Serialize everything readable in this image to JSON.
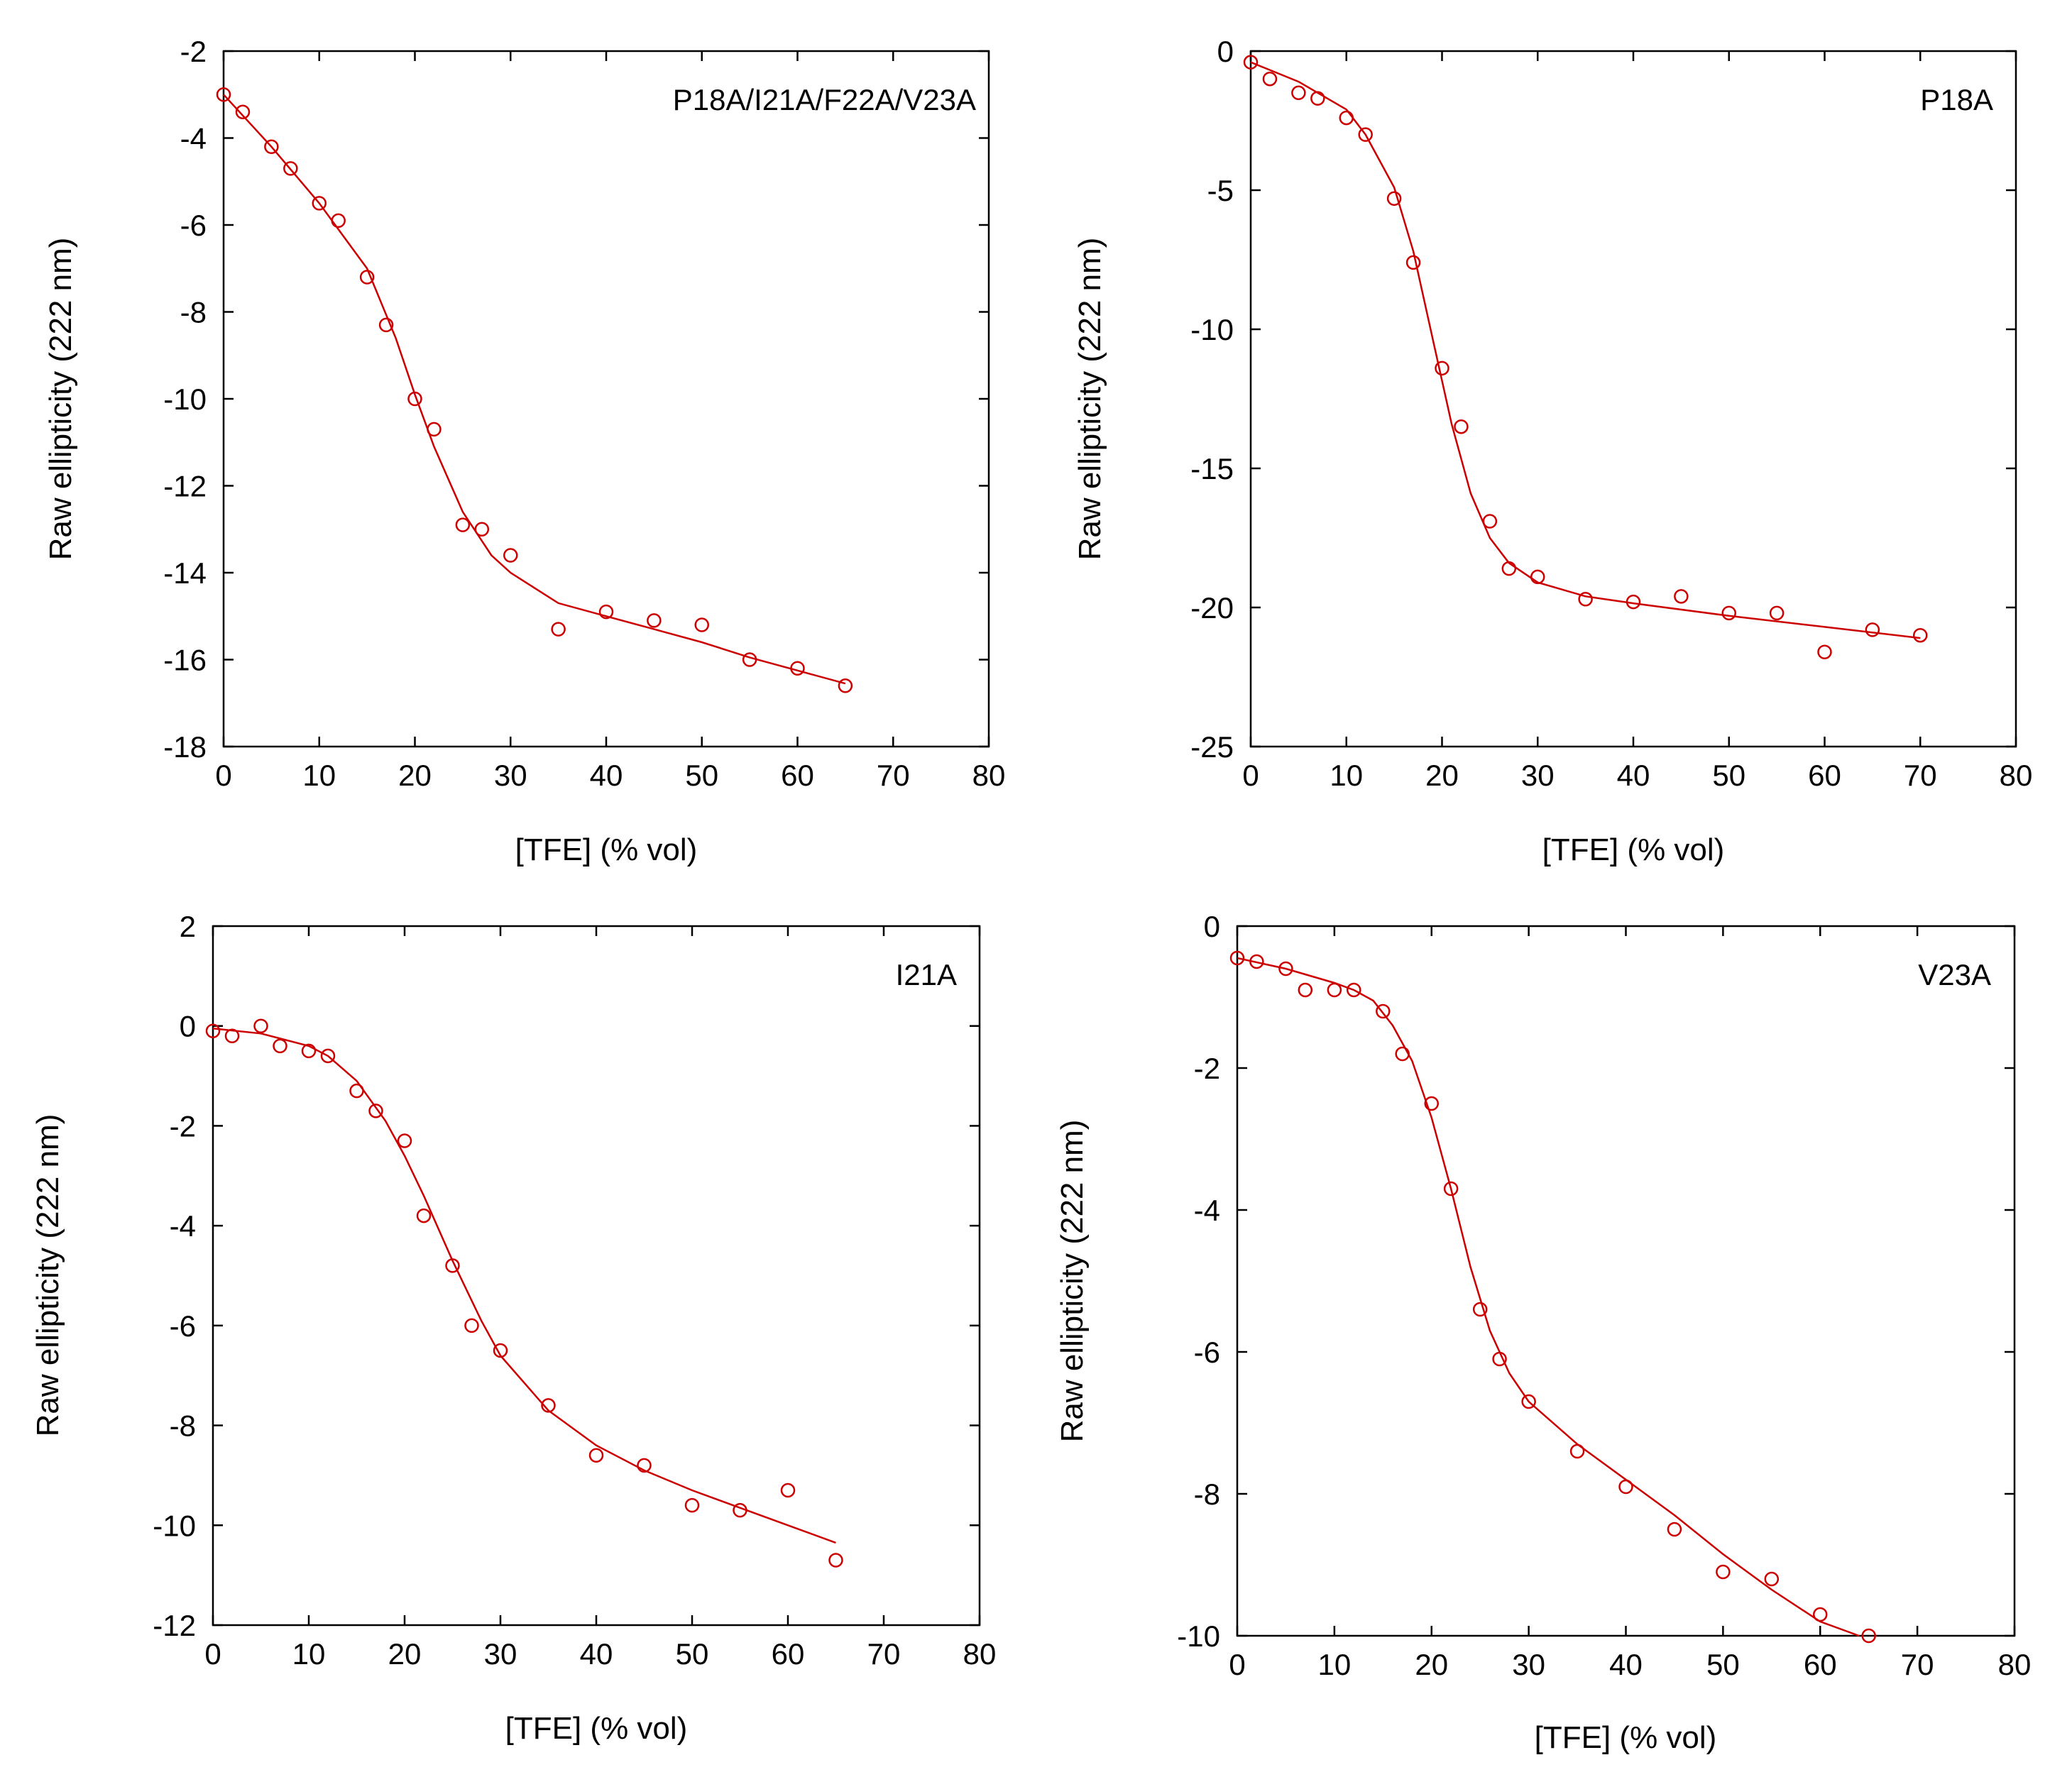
{
  "figure": {
    "marker_color": "#cc0000",
    "axis_color": "#000000",
    "background": "#ffffff"
  },
  "chart_data": [
    {
      "type": "scatter",
      "label": "P18A/I21A/F22A/V23A",
      "xlabel": "[TFE] (% vol)",
      "ylabel": "Raw ellipticity (222 nm)",
      "xlim": [
        0,
        80
      ],
      "ylim": [
        -18,
        -2
      ],
      "xticks": [
        0,
        10,
        20,
        30,
        40,
        50,
        60,
        70,
        80
      ],
      "yticks": [
        -2,
        -4,
        -6,
        -8,
        -10,
        -12,
        -14,
        -16,
        -18
      ],
      "grid": false,
      "points": {
        "x": [
          0,
          2,
          5,
          7,
          10,
          12,
          15,
          17,
          20,
          22,
          25,
          27,
          30,
          35,
          40,
          45,
          50,
          55,
          60,
          65
        ],
        "y": [
          -3.0,
          -3.4,
          -4.2,
          -4.7,
          -5.5,
          -5.9,
          -7.2,
          -8.3,
          -10.0,
          -10.7,
          -12.9,
          -13.0,
          -13.6,
          -15.3,
          -14.9,
          -15.1,
          -15.2,
          -16.0,
          -16.2,
          -16.6
        ]
      },
      "fit": {
        "x": [
          0,
          5,
          10,
          15,
          18,
          20,
          22,
          25,
          28,
          30,
          35,
          40,
          45,
          50,
          55,
          60,
          65
        ],
        "y": [
          -3.0,
          -4.2,
          -5.5,
          -7.0,
          -8.6,
          -9.9,
          -11.1,
          -12.6,
          -13.6,
          -14.0,
          -14.7,
          -15.0,
          -15.3,
          -15.6,
          -15.95,
          -16.25,
          -16.55
        ]
      }
    },
    {
      "type": "scatter",
      "label": "P18A",
      "xlabel": "[TFE] (% vol)",
      "ylabel": "Raw ellipticity (222 nm)",
      "xlim": [
        0,
        80
      ],
      "ylim": [
        -25,
        0
      ],
      "xticks": [
        0,
        10,
        20,
        30,
        40,
        50,
        60,
        70,
        80
      ],
      "yticks": [
        0,
        -5,
        -10,
        -15,
        -20,
        -25
      ],
      "grid": false,
      "points": {
        "x": [
          0,
          2,
          5,
          7,
          10,
          12,
          15,
          17,
          20,
          22,
          25,
          27,
          30,
          35,
          40,
          45,
          50,
          55,
          60,
          65,
          70
        ],
        "y": [
          -0.4,
          -1.0,
          -1.5,
          -1.7,
          -2.4,
          -3.0,
          -5.3,
          -7.6,
          -11.4,
          -13.5,
          -16.9,
          -18.6,
          -18.9,
          -19.7,
          -19.8,
          -19.6,
          -20.2,
          -20.2,
          -21.6,
          -20.8,
          -21.0
        ]
      },
      "fit": {
        "x": [
          0,
          5,
          10,
          12,
          15,
          17,
          19,
          21,
          23,
          25,
          27,
          30,
          35,
          40,
          50,
          60,
          70
        ],
        "y": [
          -0.4,
          -1.1,
          -2.1,
          -3.0,
          -4.9,
          -7.2,
          -10.3,
          -13.4,
          -15.9,
          -17.5,
          -18.4,
          -19.1,
          -19.6,
          -19.85,
          -20.3,
          -20.7,
          -21.1
        ]
      }
    },
    {
      "type": "scatter",
      "label": "I21A",
      "xlabel": "[TFE] (% vol)",
      "ylabel": "Raw ellipticity (222 nm)",
      "xlim": [
        0,
        80
      ],
      "ylim": [
        -12,
        2
      ],
      "xticks": [
        0,
        10,
        20,
        30,
        40,
        50,
        60,
        70,
        80
      ],
      "yticks": [
        2,
        0,
        -2,
        -4,
        -6,
        -8,
        -10,
        -12
      ],
      "grid": false,
      "points": {
        "x": [
          0,
          2,
          5,
          7,
          10,
          12,
          15,
          17,
          20,
          22,
          25,
          27,
          30,
          35,
          40,
          45,
          50,
          55,
          60,
          65
        ],
        "y": [
          -0.1,
          -0.2,
          0.0,
          -0.4,
          -0.5,
          -0.6,
          -1.3,
          -1.7,
          -2.3,
          -3.8,
          -4.8,
          -6.0,
          -6.5,
          -7.6,
          -8.6,
          -8.8,
          -9.6,
          -9.7,
          -9.3,
          -10.7
        ]
      },
      "fit": {
        "x": [
          0,
          5,
          10,
          12,
          15,
          18,
          20,
          22,
          25,
          28,
          30,
          35,
          40,
          45,
          50,
          55,
          60,
          65
        ],
        "y": [
          -0.05,
          -0.15,
          -0.4,
          -0.6,
          -1.1,
          -1.9,
          -2.6,
          -3.4,
          -4.7,
          -5.9,
          -6.6,
          -7.7,
          -8.4,
          -8.9,
          -9.3,
          -9.65,
          -10.0,
          -10.35
        ]
      }
    },
    {
      "type": "scatter",
      "label": "V23A",
      "xlabel": "[TFE] (% vol)",
      "ylabel": "Raw ellipticity (222 nm)",
      "xlim": [
        0,
        80
      ],
      "ylim": [
        -10,
        0
      ],
      "xticks": [
        0,
        10,
        20,
        30,
        40,
        50,
        60,
        70,
        80
      ],
      "yticks": [
        0,
        -2,
        -4,
        -6,
        -8,
        -10
      ],
      "grid": false,
      "points": {
        "x": [
          0,
          2,
          5,
          7,
          10,
          12,
          15,
          17,
          20,
          22,
          25,
          27,
          30,
          35,
          40,
          45,
          50,
          55,
          60,
          65
        ],
        "y": [
          -0.45,
          -0.5,
          -0.6,
          -0.9,
          -0.9,
          -0.9,
          -1.2,
          -1.8,
          -2.5,
          -3.7,
          -5.4,
          -6.1,
          -6.7,
          -7.4,
          -7.9,
          -8.5,
          -9.1,
          -9.2,
          -9.7,
          -10.0
        ]
      },
      "fit": {
        "x": [
          0,
          5,
          10,
          12,
          14,
          16,
          18,
          20,
          22,
          24,
          26,
          28,
          30,
          35,
          40,
          45,
          50,
          55,
          60,
          64
        ],
        "y": [
          -0.45,
          -0.6,
          -0.8,
          -0.9,
          -1.05,
          -1.4,
          -1.9,
          -2.7,
          -3.7,
          -4.8,
          -5.7,
          -6.3,
          -6.7,
          -7.3,
          -7.8,
          -8.3,
          -8.85,
          -9.35,
          -9.8,
          -10.0
        ]
      }
    }
  ]
}
